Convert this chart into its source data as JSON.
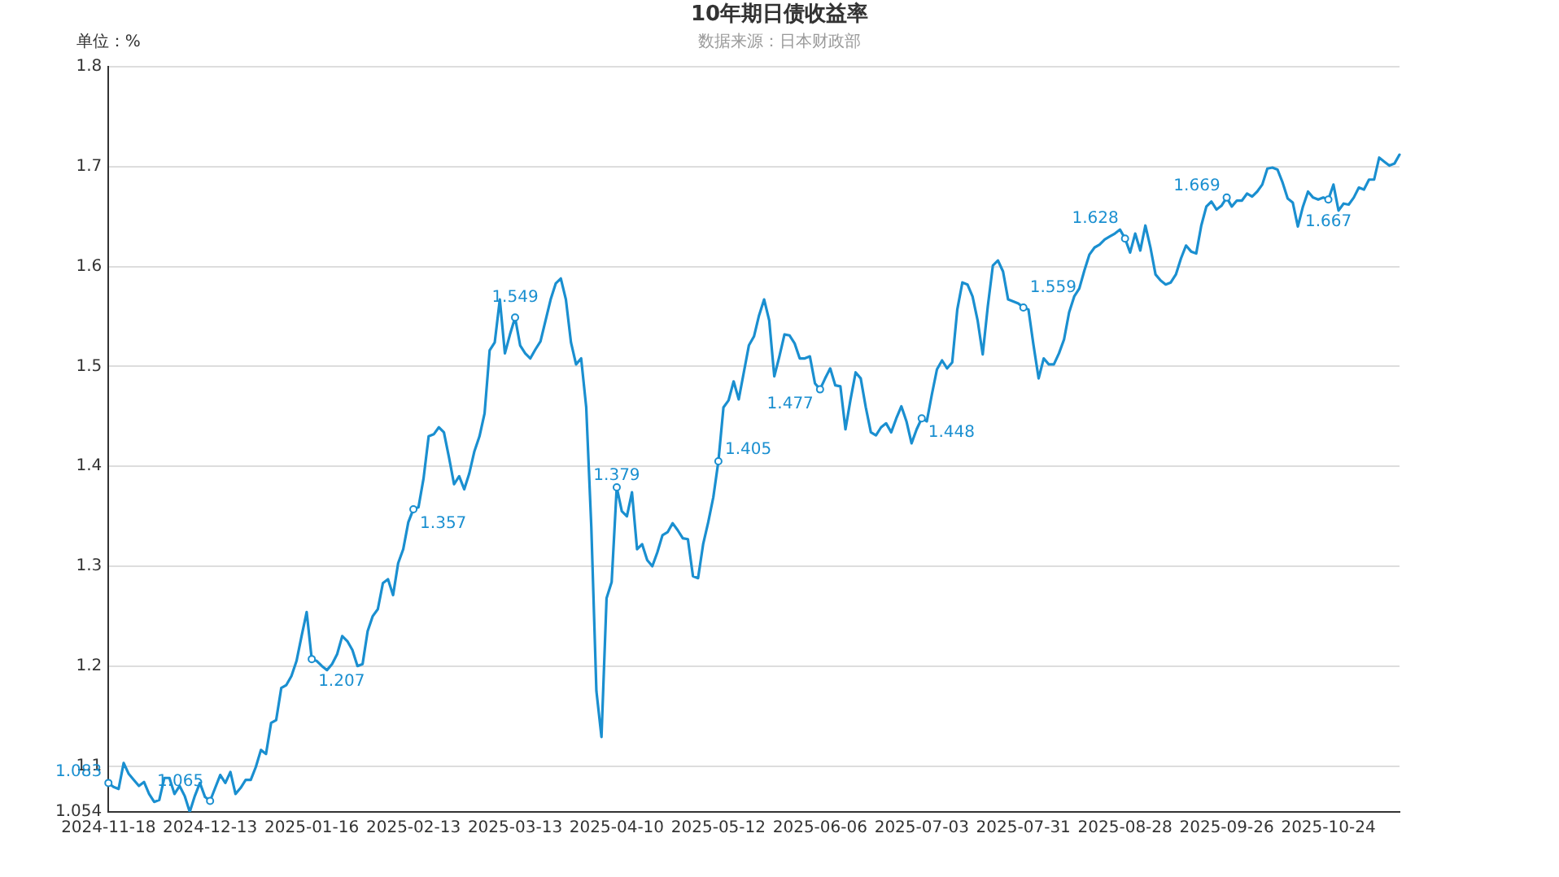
{
  "chart_data": {
    "type": "line",
    "title": "10年期日债收益率",
    "annotations": [
      "数据来源：日本财政部"
    ],
    "ylabel": "单位：%",
    "categories": [
      "2024-11-18",
      null,
      null,
      null,
      null,
      null,
      null,
      null,
      null,
      null,
      null,
      null,
      null,
      null,
      null,
      null,
      null,
      null,
      null,
      null,
      "2024-12-13",
      null,
      null,
      null,
      null,
      null,
      null,
      null,
      null,
      null,
      null,
      null,
      null,
      null,
      null,
      null,
      null,
      null,
      null,
      null,
      "2025-01-16",
      null,
      null,
      null,
      null,
      null,
      null,
      null,
      null,
      null,
      null,
      null,
      null,
      null,
      null,
      null,
      null,
      null,
      null,
      null,
      "2025-02-13",
      null,
      null,
      null,
      null,
      null,
      null,
      null,
      null,
      null,
      null,
      null,
      null,
      null,
      null,
      null,
      null,
      null,
      null,
      null,
      "2025-03-13",
      null,
      null,
      null,
      null,
      null,
      null,
      null,
      null,
      null,
      null,
      null,
      null,
      null,
      null,
      null,
      null,
      null,
      null,
      null,
      "2025-04-10",
      null,
      null,
      null,
      null,
      null,
      null,
      null,
      null,
      null,
      null,
      null,
      null,
      null,
      null,
      null,
      null,
      null,
      null,
      null,
      "2025-05-12",
      null,
      null,
      null,
      null,
      null,
      null,
      null,
      null,
      null,
      null,
      null,
      null,
      null,
      null,
      null,
      null,
      null,
      null,
      null,
      "2025-06-06",
      null,
      null,
      null,
      null,
      null,
      null,
      null,
      null,
      null,
      null,
      null,
      null,
      null,
      null,
      null,
      null,
      null,
      null,
      null,
      "2025-07-03",
      null,
      null,
      null,
      null,
      null,
      null,
      null,
      null,
      null,
      null,
      null,
      null,
      null,
      null,
      null,
      null,
      null,
      null,
      null,
      "2025-07-31",
      null,
      null,
      null,
      null,
      null,
      null,
      null,
      null,
      null,
      null,
      null,
      null,
      null,
      null,
      null,
      null,
      null,
      null,
      null,
      "2025-08-28",
      null,
      null,
      null,
      null,
      null,
      null,
      null,
      null,
      null,
      null,
      null,
      null,
      null,
      null,
      null,
      null,
      null,
      null,
      null,
      "2025-09-26",
      null,
      null,
      null,
      null,
      null,
      null,
      null,
      null,
      null,
      null,
      null,
      null,
      null,
      null,
      null,
      null,
      null,
      null,
      null,
      "2025-10-24",
      null,
      null,
      null,
      null,
      null,
      null,
      null,
      null,
      null,
      null,
      null,
      null,
      null,
      null
    ],
    "series": [
      {
        "color": "#1a8fd0",
        "values": [
          1.083,
          1.079,
          1.077,
          1.103,
          1.092,
          1.086,
          1.08,
          1.084,
          1.072,
          1.064,
          1.066,
          1.088,
          1.088,
          1.072,
          1.08,
          1.07,
          1.054,
          1.07,
          1.083,
          1.069,
          1.065,
          1.078,
          1.091,
          1.083,
          1.094,
          1.072,
          1.078,
          1.086,
          1.086,
          1.099,
          1.116,
          1.112,
          1.143,
          1.146,
          1.178,
          1.181,
          1.19,
          1.205,
          1.23,
          1.254,
          1.207,
          1.205,
          1.2,
          1.196,
          1.202,
          1.212,
          1.23,
          1.225,
          1.216,
          1.2,
          1.202,
          1.235,
          1.25,
          1.257,
          1.283,
          1.287,
          1.271,
          1.303,
          1.317,
          1.344,
          1.357,
          1.359,
          1.388,
          1.43,
          1.432,
          1.439,
          1.434,
          1.409,
          1.382,
          1.39,
          1.377,
          1.393,
          1.415,
          1.43,
          1.453,
          1.516,
          1.524,
          1.567,
          1.513,
          1.532,
          1.549,
          1.521,
          1.513,
          1.508,
          1.517,
          1.525,
          1.546,
          1.567,
          1.583,
          1.588,
          1.567,
          1.524,
          1.502,
          1.508,
          1.459,
          1.339,
          1.175,
          1.129,
          1.268,
          1.284,
          1.379,
          1.355,
          1.35,
          1.374,
          1.317,
          1.322,
          1.306,
          1.3,
          1.314,
          1.331,
          1.334,
          1.343,
          1.336,
          1.328,
          1.327,
          1.29,
          1.288,
          1.322,
          1.344,
          1.369,
          1.405,
          1.459,
          1.466,
          1.485,
          1.467,
          1.494,
          1.521,
          1.53,
          1.551,
          1.567,
          1.546,
          1.49,
          1.51,
          1.532,
          1.531,
          1.523,
          1.508,
          1.508,
          1.51,
          1.483,
          1.477,
          1.488,
          1.498,
          1.481,
          1.48,
          1.437,
          1.467,
          1.494,
          1.488,
          1.459,
          1.434,
          1.431,
          1.439,
          1.443,
          1.434,
          1.448,
          1.46,
          1.445,
          1.423,
          1.437,
          1.448,
          1.445,
          1.472,
          1.497,
          1.506,
          1.498,
          1.504,
          1.557,
          1.584,
          1.582,
          1.57,
          1.546,
          1.512,
          1.56,
          1.601,
          1.606,
          1.595,
          1.567,
          1.565,
          1.563,
          1.559,
          1.557,
          1.521,
          1.488,
          1.508,
          1.502,
          1.502,
          1.513,
          1.527,
          1.554,
          1.57,
          1.578,
          1.596,
          1.612,
          1.619,
          1.622,
          1.627,
          1.63,
          1.633,
          1.637,
          1.628,
          1.614,
          1.633,
          1.616,
          1.641,
          1.619,
          1.592,
          1.586,
          1.582,
          1.584,
          1.592,
          1.608,
          1.621,
          1.615,
          1.613,
          1.641,
          1.66,
          1.665,
          1.657,
          1.661,
          1.669,
          1.66,
          1.666,
          1.666,
          1.673,
          1.67,
          1.675,
          1.682,
          1.698,
          1.699,
          1.697,
          1.684,
          1.668,
          1.664,
          1.64,
          1.66,
          1.675,
          1.669,
          1.667,
          1.669,
          1.667,
          1.682,
          1.656,
          1.663,
          1.662,
          1.669,
          1.679,
          1.677,
          1.687,
          1.687,
          1.709,
          1.705,
          1.701,
          1.703,
          1.712
        ],
        "value_labels": [
          "1.083",
          null,
          null,
          null,
          null,
          null,
          null,
          null,
          null,
          null,
          null,
          null,
          null,
          null,
          null,
          null,
          null,
          null,
          null,
          null,
          "1.065",
          null,
          null,
          null,
          null,
          null,
          null,
          null,
          null,
          null,
          null,
          null,
          null,
          null,
          null,
          null,
          null,
          null,
          null,
          null,
          "1.207",
          null,
          null,
          null,
          null,
          null,
          null,
          null,
          null,
          null,
          null,
          null,
          null,
          null,
          null,
          null,
          null,
          null,
          null,
          null,
          "1.357",
          null,
          null,
          null,
          null,
          null,
          null,
          null,
          null,
          null,
          null,
          null,
          null,
          null,
          null,
          null,
          null,
          null,
          null,
          null,
          "1.549",
          null,
          null,
          null,
          null,
          null,
          null,
          null,
          null,
          null,
          null,
          null,
          null,
          null,
          null,
          null,
          null,
          null,
          null,
          null,
          "1.379",
          null,
          null,
          null,
          null,
          null,
          null,
          null,
          null,
          null,
          null,
          null,
          null,
          null,
          null,
          null,
          null,
          null,
          null,
          null,
          "1.405",
          null,
          null,
          null,
          null,
          null,
          null,
          null,
          null,
          null,
          null,
          null,
          null,
          null,
          null,
          null,
          null,
          null,
          null,
          null,
          "1.477",
          null,
          null,
          null,
          null,
          null,
          null,
          null,
          null,
          null,
          null,
          null,
          null,
          null,
          null,
          null,
          null,
          null,
          null,
          null,
          "1.448",
          null,
          null,
          null,
          null,
          null,
          null,
          null,
          null,
          null,
          null,
          null,
          null,
          null,
          null,
          null,
          null,
          null,
          null,
          null,
          "1.559",
          null,
          null,
          null,
          null,
          null,
          null,
          null,
          null,
          null,
          null,
          null,
          null,
          null,
          null,
          null,
          null,
          null,
          null,
          null,
          "1.628",
          null,
          null,
          null,
          null,
          null,
          null,
          null,
          null,
          null,
          null,
          null,
          null,
          null,
          null,
          null,
          null,
          null,
          null,
          null,
          "1.669",
          null,
          null,
          null,
          null,
          null,
          null,
          null,
          null,
          null,
          null,
          null,
          null,
          null,
          null,
          null,
          null,
          null,
          null,
          null,
          "1.667",
          null,
          null,
          null,
          null,
          null,
          null,
          null,
          null,
          null,
          null,
          null,
          null,
          null,
          null
        ]
      }
    ],
    "ylim": [
      1.054,
      1.8
    ],
    "yticks": [
      1.054,
      1.1,
      1.2,
      1.3,
      1.4,
      1.5,
      1.6,
      1.7,
      1.8
    ],
    "grid": "y",
    "legend": false,
    "marker": "none",
    "line_style": "solid"
  }
}
